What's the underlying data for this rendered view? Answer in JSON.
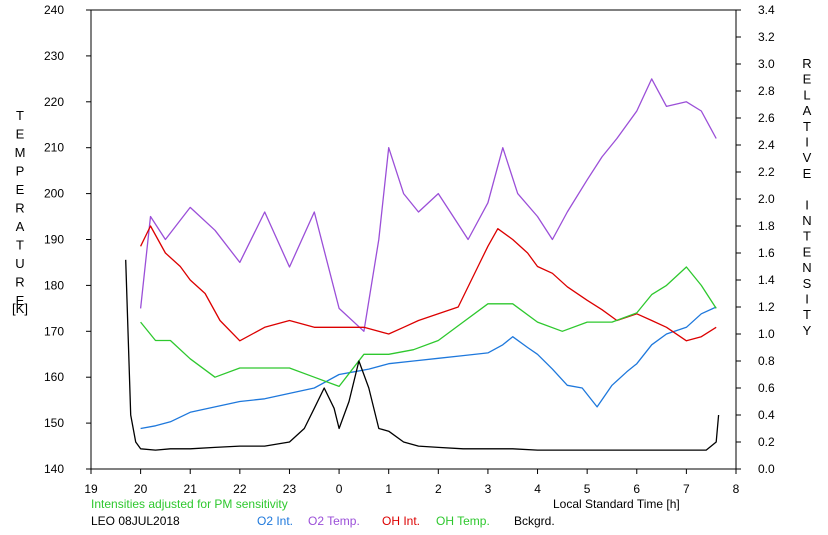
{
  "chart_data": {
    "type": "line",
    "title": "",
    "xlabel": "Local Standard Time [h]",
    "ylabel_left": "TEMPERATURE [K]",
    "ylabel_left_letters": [
      "T",
      "E",
      "M",
      "P",
      "E",
      "R",
      "A",
      "T",
      "U",
      "R",
      "E"
    ],
    "ylabel_left_unit": "[K]",
    "ylabel_right": "RELATIVE INTENSITY",
    "ylabel_right_letters": [
      "R",
      "E",
      "L",
      "A",
      "T",
      "I",
      "V",
      "E",
      "",
      "I",
      "N",
      "T",
      "E",
      "N",
      "S",
      "I",
      "T",
      "Y"
    ],
    "x_ticks": [
      19,
      20,
      21,
      22,
      23,
      24,
      25,
      26,
      27,
      28,
      29,
      30,
      31,
      32
    ],
    "x_tick_labels": [
      "19",
      "20",
      "21",
      "22",
      "23",
      "0",
      "1",
      "2",
      "3",
      "4",
      "5",
      "6",
      "7",
      "8"
    ],
    "xlim": [
      19,
      32
    ],
    "ylim_left": [
      140,
      240
    ],
    "y_ticks_left": [
      140,
      150,
      160,
      170,
      180,
      190,
      200,
      210,
      220,
      230,
      240
    ],
    "ylim_right": [
      0,
      3.4
    ],
    "y_ticks_right": [
      "0.0",
      "0.2",
      "0.4",
      "0.6",
      "0.8",
      "1.0",
      "1.2",
      "1.4",
      "1.6",
      "1.8",
      "2.0",
      "2.2",
      "2.4",
      "2.6",
      "2.8",
      "3.0",
      "3.2",
      "3.4"
    ],
    "grid": false,
    "note": "Intensities adjusted for PM sensitivity",
    "station": "LEO 08JUL2018",
    "series": [
      {
        "name": "O2 Int.",
        "color": "#1e78dc",
        "axis": "right",
        "x": [
          20.0,
          20.3,
          20.6,
          21.0,
          21.5,
          22.0,
          22.5,
          23.0,
          23.5,
          24.0,
          24.3,
          24.6,
          25.0,
          25.5,
          26.0,
          26.5,
          27.0,
          27.3,
          27.5,
          27.8,
          28.0,
          28.3,
          28.6,
          28.9,
          29.2,
          29.5,
          29.8,
          30.0,
          30.3,
          30.6,
          31.0,
          31.3,
          31.6
        ],
        "y": [
          0.3,
          0.32,
          0.35,
          0.42,
          0.46,
          0.5,
          0.52,
          0.56,
          0.6,
          0.7,
          0.72,
          0.74,
          0.78,
          0.8,
          0.82,
          0.84,
          0.86,
          0.92,
          0.98,
          0.9,
          0.85,
          0.74,
          0.62,
          0.6,
          0.46,
          0.62,
          0.72,
          0.78,
          0.92,
          1.0,
          1.05,
          1.15,
          1.2
        ]
      },
      {
        "name": "O2 Temp.",
        "color": "#9b4fd8",
        "axis": "left",
        "x": [
          20.0,
          20.2,
          20.5,
          21.0,
          21.5,
          22.0,
          22.5,
          23.0,
          23.5,
          24.0,
          24.5,
          24.8,
          25.0,
          25.3,
          25.6,
          26.0,
          26.3,
          26.6,
          27.0,
          27.3,
          27.6,
          28.0,
          28.3,
          28.6,
          29.0,
          29.3,
          29.6,
          30.0,
          30.3,
          30.6,
          31.0,
          31.3,
          31.6
        ],
        "y": [
          175,
          195,
          190,
          197,
          192,
          185,
          196,
          184,
          196,
          175,
          170,
          190,
          210,
          200,
          196,
          200,
          195,
          190,
          198,
          210,
          200,
          195,
          190,
          196,
          203,
          208,
          212,
          218,
          225,
          219,
          220,
          218,
          212
        ]
      },
      {
        "name": "OH Int.",
        "color": "#dc0000",
        "axis": "right",
        "x": [
          20.0,
          20.2,
          20.5,
          20.8,
          21.0,
          21.3,
          21.6,
          22.0,
          22.5,
          23.0,
          23.5,
          24.0,
          24.5,
          25.0,
          25.3,
          25.6,
          26.0,
          26.4,
          26.8,
          27.0,
          27.2,
          27.5,
          27.8,
          28.0,
          28.3,
          28.6,
          29.0,
          29.3,
          29.6,
          30.0,
          30.3,
          30.6,
          31.0,
          31.3,
          31.6
        ],
        "y": [
          1.65,
          1.8,
          1.6,
          1.5,
          1.4,
          1.3,
          1.1,
          0.95,
          1.05,
          1.1,
          1.05,
          1.05,
          1.05,
          1.0,
          1.05,
          1.1,
          1.15,
          1.2,
          1.5,
          1.65,
          1.78,
          1.7,
          1.6,
          1.5,
          1.45,
          1.35,
          1.25,
          1.18,
          1.1,
          1.15,
          1.1,
          1.05,
          0.95,
          0.98,
          1.05
        ]
      },
      {
        "name": "OH Temp.",
        "color": "#2ec82e",
        "axis": "left",
        "x": [
          20.0,
          20.3,
          20.6,
          21.0,
          21.5,
          22.0,
          22.5,
          23.0,
          23.5,
          24.0,
          24.5,
          25.0,
          25.5,
          26.0,
          26.5,
          27.0,
          27.5,
          28.0,
          28.5,
          29.0,
          29.5,
          30.0,
          30.3,
          30.6,
          31.0,
          31.3,
          31.6
        ],
        "y": [
          172,
          168,
          168,
          164,
          160,
          162,
          162,
          162,
          160,
          158,
          165,
          165,
          166,
          168,
          172,
          176,
          176,
          172,
          170,
          172,
          172,
          174,
          178,
          180,
          184,
          180,
          175
        ]
      },
      {
        "name": "Bckgrd.",
        "color": "#000000",
        "axis": "right",
        "x": [
          19.7,
          19.8,
          19.9,
          20.0,
          20.3,
          20.6,
          21.0,
          21.5,
          22.0,
          22.5,
          23.0,
          23.3,
          23.5,
          23.7,
          23.9,
          24.0,
          24.2,
          24.4,
          24.6,
          24.8,
          25.0,
          25.3,
          25.6,
          26.0,
          26.5,
          27.0,
          27.5,
          28.0,
          28.5,
          29.0,
          29.5,
          30.0,
          30.5,
          31.0,
          31.4,
          31.6,
          31.65
        ],
        "y": [
          1.55,
          0.4,
          0.2,
          0.15,
          0.14,
          0.15,
          0.15,
          0.16,
          0.17,
          0.17,
          0.2,
          0.3,
          0.45,
          0.6,
          0.45,
          0.3,
          0.5,
          0.8,
          0.6,
          0.3,
          0.28,
          0.2,
          0.17,
          0.16,
          0.15,
          0.15,
          0.15,
          0.14,
          0.14,
          0.14,
          0.14,
          0.14,
          0.14,
          0.14,
          0.14,
          0.2,
          0.4
        ]
      }
    ]
  },
  "legend": {
    "station": "LEO 08JUL2018",
    "note": "Intensities adjusted for PM sensitivity",
    "xlabel": "Local Standard Time [h]",
    "items": [
      {
        "label": "O2 Int.",
        "color": "#1e78dc"
      },
      {
        "label": "O2 Temp.",
        "color": "#9b4fd8"
      },
      {
        "label": "OH Int.",
        "color": "#dc0000"
      },
      {
        "label": "OH Temp.",
        "color": "#2ec82e"
      },
      {
        "label": "Bckgrd.",
        "color": "#000000"
      }
    ]
  }
}
